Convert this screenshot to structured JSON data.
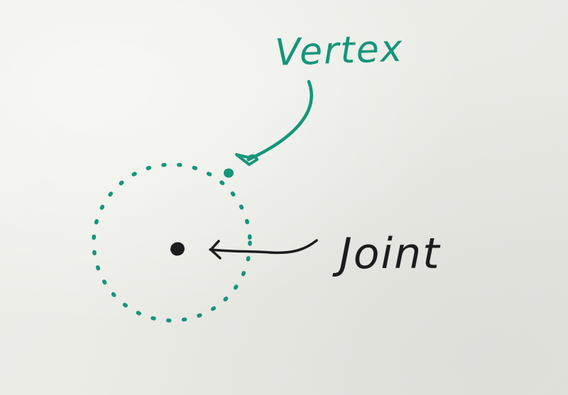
{
  "labels": {
    "vertex": "Vertex",
    "joint": "Joint"
  },
  "colors": {
    "board": "#ecece7",
    "teal_marker": "#14967a",
    "black_marker": "#1c1c1c"
  },
  "icons": {
    "vertex_point": "teal-dot",
    "joint_point": "black-dot",
    "arrow": "curved-teal-arrow",
    "pointer": "wavy-black-pointer"
  }
}
